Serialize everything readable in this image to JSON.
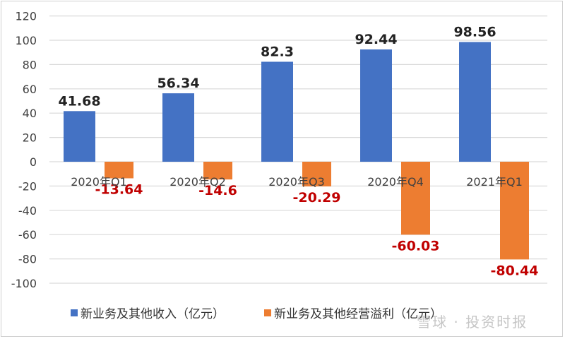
{
  "chart_data": {
    "type": "bar",
    "categories": [
      "2020年Q1",
      "2020年Q2",
      "2020年Q3",
      "2020年Q4",
      "2021年Q1"
    ],
    "series": [
      {
        "name": "新业务及其他收入（亿元）",
        "values": [
          41.68,
          56.34,
          82.3,
          92.44,
          98.56
        ],
        "color": "#4472c4",
        "label_color": "#222222"
      },
      {
        "name": "新业务及其他经营溢利（亿元）",
        "values": [
          -13.64,
          -14.6,
          -20.29,
          -60.03,
          -80.44
        ],
        "color": "#ed7d31",
        "label_color": "#c00000"
      }
    ],
    "data_labels": [
      [
        "41.68",
        "56.34",
        "82.3",
        "92.44",
        "98.56"
      ],
      [
        "-13.64",
        "-14.6",
        "-20.29",
        "-60.03",
        "-80.44"
      ]
    ],
    "ylim": [
      -100,
      120
    ],
    "yticks": [
      120,
      100,
      80,
      60,
      40,
      20,
      0,
      -20,
      -40,
      -60,
      -80,
      -100
    ],
    "grid": true,
    "legend_position": "bottom"
  },
  "watermark": "雪球 · 投资时报"
}
